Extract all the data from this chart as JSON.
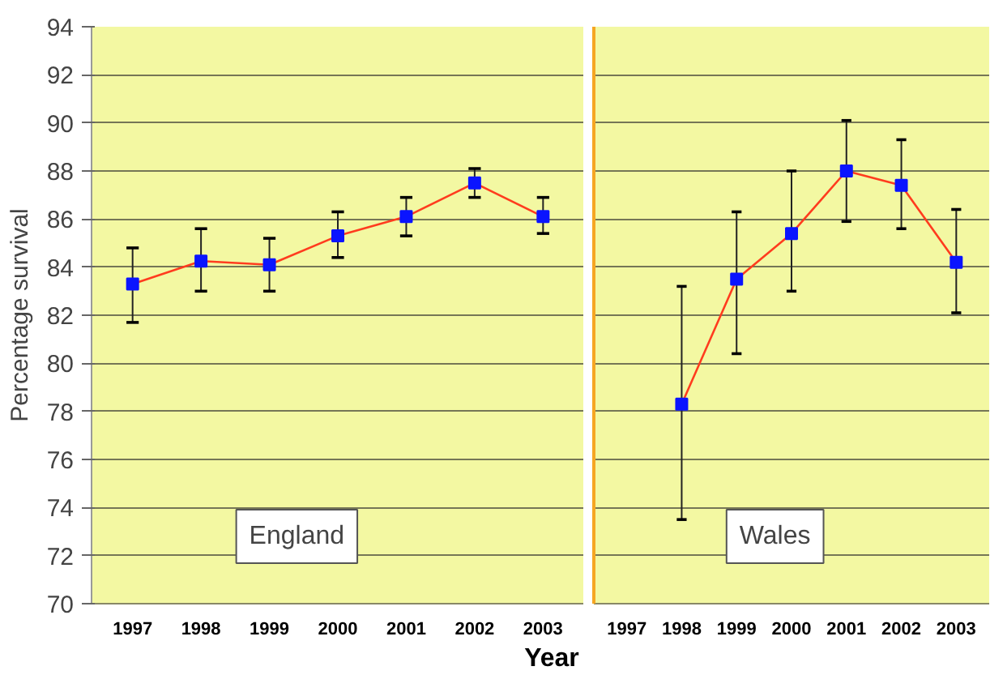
{
  "chart_data": [
    {
      "type": "line",
      "ylabel": "Percentage survival",
      "xlabel": "Year",
      "categories": [
        "1997",
        "1998",
        "1999",
        "2000",
        "2001",
        "2002",
        "2003"
      ],
      "ylim": [
        70,
        94
      ],
      "yticks": [
        70,
        72,
        74,
        76,
        78,
        80,
        82,
        84,
        86,
        88,
        90,
        92,
        94
      ],
      "grid": "y",
      "marker": "square",
      "annotations": [
        "England"
      ],
      "series": [
        {
          "color": "#ff3c1e",
          "values": [
            83.3,
            84.25,
            84.1,
            85.3,
            86.1,
            87.5,
            86.1
          ],
          "errors": [
            [
              81.7,
              84.8
            ],
            [
              83.0,
              85.6
            ],
            [
              83.0,
              85.2
            ],
            [
              84.4,
              86.3
            ],
            [
              85.3,
              86.9
            ],
            [
              86.9,
              88.1
            ],
            [
              85.4,
              86.9
            ]
          ]
        }
      ]
    },
    {
      "type": "line",
      "categories": [
        "1997",
        "1998",
        "1999",
        "2000",
        "2001",
        "2002",
        "2003"
      ],
      "ylim": [
        70,
        94
      ],
      "yticks": [
        70,
        72,
        74,
        76,
        78,
        80,
        82,
        84,
        86,
        88,
        90,
        92,
        94
      ],
      "grid": "y",
      "marker": "square",
      "tick_labels": "x",
      "annotations": [
        "Wales"
      ],
      "series": [
        {
          "color": "#ff3c1e",
          "values": [
            null,
            78.3,
            83.5,
            85.4,
            88.0,
            87.4,
            84.2
          ],
          "errors": [
            null,
            [
              73.5,
              83.2
            ],
            [
              80.4,
              86.3
            ],
            [
              83.0,
              88.0
            ],
            [
              85.9,
              90.1
            ],
            [
              85.6,
              89.3
            ],
            [
              82.1,
              86.4
            ]
          ]
        }
      ]
    }
  ]
}
